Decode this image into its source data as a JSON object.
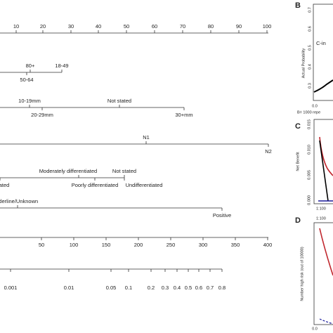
{
  "nomogram": {
    "points_axis": {
      "ticks": [
        "10",
        "20",
        "30",
        "40",
        "50",
        "60",
        "70",
        "80",
        "90",
        "100"
      ]
    },
    "age": {
      "labels": [
        "80+",
        "50-64",
        "18-49"
      ]
    },
    "tumor_size": {
      "labels": [
        "10-19mm",
        "20-29mm",
        "Not stated",
        "30+mm"
      ]
    },
    "n_stage": {
      "labels": [
        "N1",
        "N2"
      ]
    },
    "grade": {
      "labels": [
        "ated",
        "Moderately differentiated",
        "Poorly differentiated",
        "Not stated",
        "Undifferentiated"
      ]
    },
    "receptor": {
      "labels": [
        "rderline/Unknown",
        "Positive"
      ]
    },
    "total_points": {
      "ticks": [
        "50",
        "100",
        "150",
        "200",
        "250",
        "300",
        "350",
        "400"
      ]
    },
    "probability": {
      "ticks": [
        "0.001",
        "0.01",
        "0.05",
        "0.1",
        "0.2",
        "0.3",
        "0.4",
        "0.5",
        "0.6",
        "0.7",
        "0.8"
      ]
    }
  },
  "panels": {
    "b": {
      "letter": "B",
      "yticks": [
        "0.7",
        "0.6",
        "0.5",
        "0.4",
        "0.3",
        "0.2"
      ],
      "ylabel": "Actual Probability",
      "annotation": "C-in",
      "xtick": "0.0",
      "note": "B= 1000 repe"
    },
    "c": {
      "letter": "C",
      "yticks": [
        "0.015",
        "0.010",
        "0.005",
        "0.000"
      ],
      "ylabel": "Net Benefit",
      "xtick": "1:100"
    },
    "d": {
      "letter": "D",
      "ylabel": "Number high risk (out of 10000)",
      "xtick_top": "1:100",
      "xtick": "0.0"
    }
  }
}
